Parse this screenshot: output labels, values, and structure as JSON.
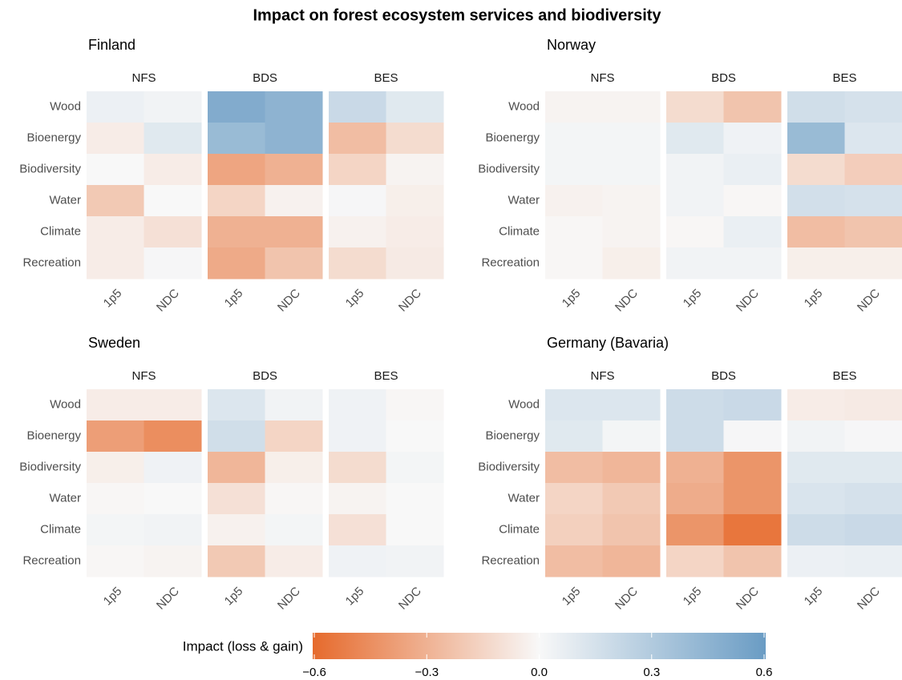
{
  "chart_data": {
    "type": "heatmap",
    "title": "Impact on forest ecosystem services and biodiversity",
    "legend_title": "Impact (loss & gain)",
    "clim": [
      -0.6,
      0.6
    ],
    "cticks": [
      {
        "value": -0.6,
        "label": "−0.6"
      },
      {
        "value": -0.3,
        "label": "−0.3"
      },
      {
        "value": 0,
        "label": "0.0"
      },
      0.3,
      0.6
    ],
    "low_color": "#e66a2c",
    "mid_color": "#f8f8f8",
    "high_color": "#6a9cc4",
    "rows": [
      "Wood",
      "Bioenergy",
      "Biodiversity",
      "Water",
      "Climate",
      "Recreation"
    ],
    "columns": [
      "1p5",
      "NDC"
    ],
    "panels": [
      {
        "title": "Finland",
        "facets": [
          {
            "name": "NFS",
            "values": [
              [
                0.05,
                0.03
              ],
              [
                -0.05,
                0.1
              ],
              [
                0.0,
                -0.05
              ],
              [
                -0.2,
                0.0
              ],
              [
                -0.05,
                -0.1
              ],
              [
                -0.05,
                0.01
              ]
            ]
          },
          {
            "name": "BDS",
            "values": [
              [
                0.5,
                0.45
              ],
              [
                0.4,
                0.45
              ],
              [
                -0.35,
                -0.3
              ],
              [
                -0.15,
                -0.03
              ],
              [
                -0.3,
                -0.3
              ],
              [
                -0.33,
                -0.22
              ]
            ]
          },
          {
            "name": "BES",
            "values": [
              [
                0.2,
                0.1
              ],
              [
                -0.25,
                -0.12
              ],
              [
                -0.15,
                -0.02
              ],
              [
                0.01,
                -0.04
              ],
              [
                -0.03,
                -0.05
              ],
              [
                -0.12,
                -0.06
              ]
            ]
          }
        ]
      },
      {
        "title": "Norway",
        "facets": [
          {
            "name": "NFS",
            "values": [
              [
                -0.02,
                -0.02
              ],
              [
                0.02,
                0.02
              ],
              [
                0.02,
                0.02
              ],
              [
                -0.03,
                -0.02
              ],
              [
                -0.01,
                -0.02
              ],
              [
                -0.01,
                -0.04
              ]
            ]
          },
          {
            "name": "BDS",
            "values": [
              [
                -0.12,
                -0.22
              ],
              [
                0.1,
                0.04
              ],
              [
                0.03,
                0.06
              ],
              [
                0.03,
                -0.01
              ],
              [
                -0.01,
                0.06
              ],
              [
                0.03,
                0.03
              ]
            ]
          },
          {
            "name": "BES",
            "values": [
              [
                0.17,
                0.15
              ],
              [
                0.4,
                0.12
              ],
              [
                -0.12,
                -0.18
              ],
              [
                0.16,
                0.15
              ],
              [
                -0.25,
                -0.22
              ],
              [
                -0.04,
                -0.04
              ]
            ]
          }
        ]
      },
      {
        "title": "Sweden",
        "facets": [
          {
            "name": "NFS",
            "values": [
              [
                -0.05,
                -0.05
              ],
              [
                -0.38,
                -0.45
              ],
              [
                -0.04,
                0.04
              ],
              [
                -0.01,
                0.0
              ],
              [
                0.02,
                0.03
              ],
              [
                -0.01,
                -0.02
              ]
            ]
          },
          {
            "name": "BDS",
            "values": [
              [
                0.12,
                0.03
              ],
              [
                0.17,
                -0.15
              ],
              [
                -0.28,
                -0.04
              ],
              [
                -0.1,
                -0.01
              ],
              [
                -0.03,
                0.02
              ],
              [
                -0.2,
                -0.05
              ]
            ]
          },
          {
            "name": "BES",
            "values": [
              [
                0.04,
                -0.01
              ],
              [
                0.04,
                0.0
              ],
              [
                -0.12,
                0.02
              ],
              [
                -0.02,
                0.0
              ],
              [
                -0.1,
                0.0
              ],
              [
                0.04,
                0.03
              ]
            ]
          }
        ]
      },
      {
        "title": "Germany (Bavaria)",
        "facets": [
          {
            "name": "NFS",
            "values": [
              [
                0.12,
                0.12
              ],
              [
                0.1,
                0.02
              ],
              [
                -0.25,
                -0.28
              ],
              [
                -0.15,
                -0.2
              ],
              [
                -0.17,
                -0.22
              ],
              [
                -0.25,
                -0.28
              ]
            ]
          },
          {
            "name": "BDS",
            "values": [
              [
                0.18,
                0.2
              ],
              [
                0.18,
                0.01
              ],
              [
                -0.3,
                -0.42
              ],
              [
                -0.32,
                -0.42
              ],
              [
                -0.42,
                -0.55
              ],
              [
                -0.15,
                -0.22
              ]
            ]
          },
          {
            "name": "BES",
            "values": [
              [
                -0.05,
                -0.06
              ],
              [
                0.03,
                0.01
              ],
              [
                0.1,
                0.1
              ],
              [
                0.13,
                0.15
              ],
              [
                0.18,
                0.2
              ],
              [
                0.05,
                0.06
              ]
            ]
          }
        ]
      }
    ]
  }
}
